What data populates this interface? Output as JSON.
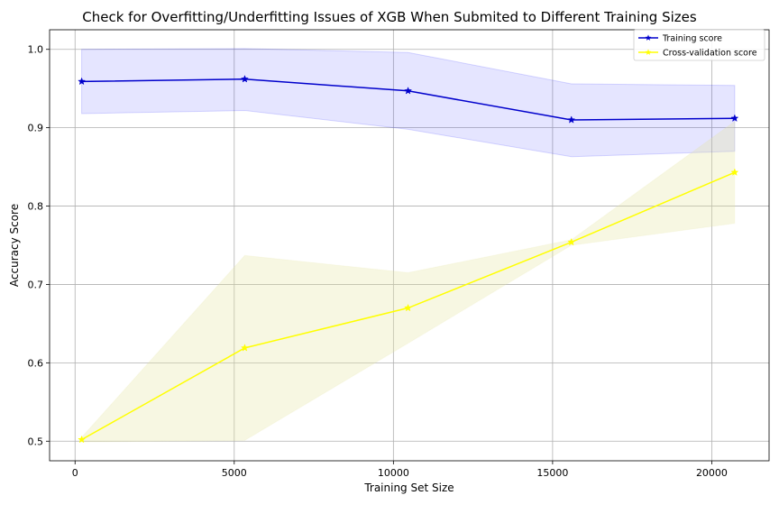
{
  "chart_data": {
    "type": "line",
    "title": "Check for Overfitting/Underfitting Issues of XGB When Submited to Different Training Sizes",
    "xlabel": "Training Set Size",
    "ylabel": "Accuracy Score",
    "xlim": [
      -800,
      21800
    ],
    "ylim": [
      0.475,
      1.025
    ],
    "x_ticks": [
      0,
      5000,
      10000,
      15000,
      20000
    ],
    "y_ticks": [
      0.5,
      0.6,
      0.7,
      0.8,
      0.9,
      1.0
    ],
    "x_tick_labels": [
      "0",
      "5000",
      "10000",
      "15000",
      "20000"
    ],
    "y_tick_labels": [
      "0.5",
      "0.6",
      "0.7",
      "0.8",
      "0.9",
      "1.0"
    ],
    "grid": true,
    "legend_position": "top-right",
    "x": [
      208,
      5330,
      10460,
      15590,
      20720
    ],
    "series": [
      {
        "name": "Training score",
        "color": "#0000cc",
        "band_color": "#0000ff",
        "marker": "star",
        "values": [
          0.959,
          0.962,
          0.947,
          0.91,
          0.912
        ],
        "band_upper": [
          1.0,
          1.001,
          0.996,
          0.956,
          0.954
        ],
        "band_lower": [
          0.918,
          0.922,
          0.898,
          0.863,
          0.87
        ]
      },
      {
        "name": "Cross-validation score",
        "color": "#ffff00",
        "band_color": "#e6e6a0",
        "marker": "star",
        "values": [
          0.502,
          0.619,
          0.67,
          0.754,
          0.843
        ],
        "band_upper": [
          0.505,
          0.737,
          0.715,
          0.757,
          0.908
        ],
        "band_lower": [
          0.499,
          0.501,
          0.625,
          0.75,
          0.778
        ]
      }
    ]
  }
}
